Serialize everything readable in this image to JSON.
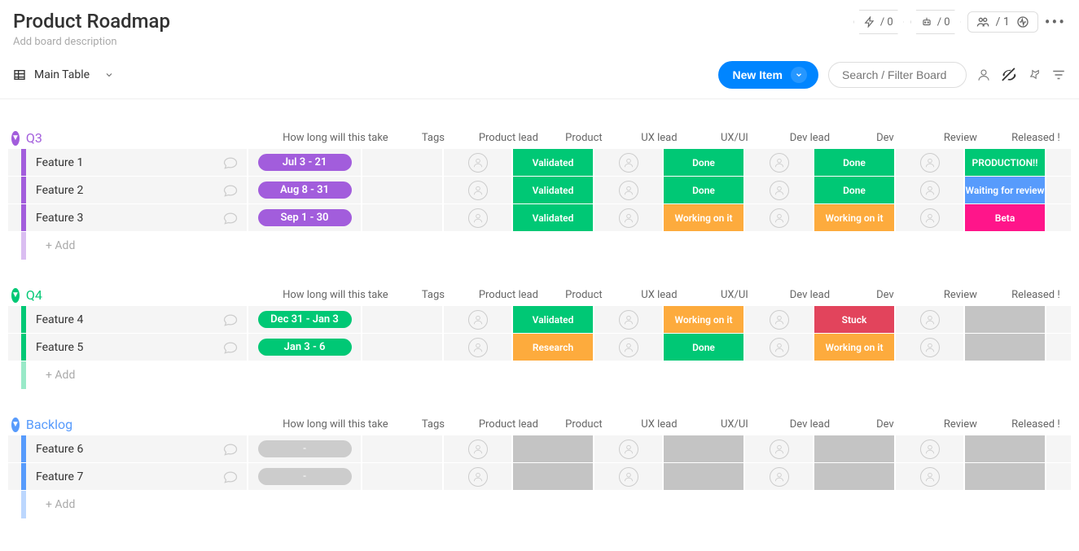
{
  "header": {
    "title": "Product Roadmap",
    "description_placeholder": "Add board description",
    "moves_count": "/ 0",
    "requests_count": "/ 0",
    "members_count": "/ 1"
  },
  "toolbar": {
    "view_label": "Main Table",
    "new_item_label": "New Item",
    "search_placeholder": "Search / Filter Board"
  },
  "columns": [
    "How long will this take",
    "Tags",
    "Product lead",
    "Product",
    "UX lead",
    "UX/UI",
    "Dev lead",
    "Dev",
    "Review",
    "Released !"
  ],
  "status_colors": {
    "Validated": "#00c875",
    "Done": "#00c875",
    "Working on it": "#fdab3d",
    "Stuck": "#e2445c",
    "Research": "#fdab3d",
    "PRODUCTION!!": "#00c875",
    "Waiting for review": "#579bfc",
    "Beta": "#ff158a"
  },
  "groups": [
    {
      "name": "Q3",
      "color": "#a25ddc",
      "timeline_color": "#a25ddc",
      "rows": [
        {
          "name": "Feature 1",
          "timeline": "Jul 3 - 21",
          "product": "Validated",
          "uxui": "Done",
          "dev": "Done",
          "released": "PRODUCTION!!"
        },
        {
          "name": "Feature 2",
          "timeline": "Aug 8 - 31",
          "product": "Validated",
          "uxui": "Done",
          "dev": "Done",
          "released": "Waiting for review"
        },
        {
          "name": "Feature 3",
          "timeline": "Sep 1 - 30",
          "product": "Validated",
          "uxui": "Working on it",
          "dev": "Working on it",
          "released": "Beta"
        }
      ]
    },
    {
      "name": "Q4",
      "color": "#00c875",
      "timeline_color": "#00c875",
      "rows": [
        {
          "name": "Feature 4",
          "timeline": "Dec 31 - Jan 3",
          "product": "Validated",
          "uxui": "Working on it",
          "dev": "Stuck",
          "released": ""
        },
        {
          "name": "Feature 5",
          "timeline": "Jan 3 - 6",
          "product": "Research",
          "uxui": "Done",
          "dev": "Working on it",
          "released": ""
        }
      ]
    },
    {
      "name": "Backlog",
      "color": "#579bfc",
      "timeline_color": "",
      "rows": [
        {
          "name": "Feature 6",
          "timeline": "-",
          "product": "",
          "uxui": "",
          "dev": "",
          "released": ""
        },
        {
          "name": "Feature 7",
          "timeline": "-",
          "product": "",
          "uxui": "",
          "dev": "",
          "released": ""
        }
      ]
    }
  ],
  "add_row_label": "+ Add"
}
